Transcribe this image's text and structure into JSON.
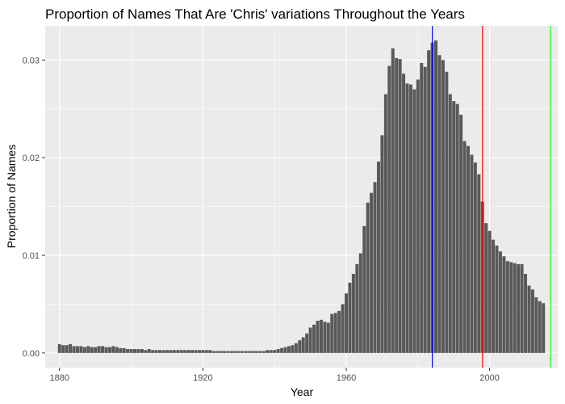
{
  "chart_data": {
    "type": "bar",
    "title": "Proportion of Names That Are 'Chris' variations Throughout the Years",
    "xlabel": "Year",
    "ylabel": "Proportion of Names",
    "xlim": [
      1876,
      2019
    ],
    "ylim": [
      -0.0015,
      0.0335
    ],
    "xticks": [
      1880,
      1920,
      1960,
      2000
    ],
    "yticks": [
      0.0,
      0.01,
      0.02,
      0.03
    ],
    "ytick_labels": [
      "0.00",
      "0.01",
      "0.02",
      "0.03"
    ],
    "grid": true,
    "colors": {
      "panel": "#ebebeb",
      "grid": "#ffffff",
      "bar": "#595959",
      "tick": "#333333"
    },
    "reference_lines": [
      {
        "x": 1984,
        "color": "#0000ff"
      },
      {
        "x": 1998,
        "color": "#ff0000"
      },
      {
        "x": 2017,
        "color": "#00ff00"
      }
    ],
    "x": [
      1880,
      1881,
      1882,
      1883,
      1884,
      1885,
      1886,
      1887,
      1888,
      1889,
      1890,
      1891,
      1892,
      1893,
      1894,
      1895,
      1896,
      1897,
      1898,
      1899,
      1900,
      1901,
      1902,
      1903,
      1904,
      1905,
      1906,
      1907,
      1908,
      1909,
      1910,
      1911,
      1912,
      1913,
      1914,
      1915,
      1916,
      1917,
      1918,
      1919,
      1920,
      1921,
      1922,
      1923,
      1924,
      1925,
      1926,
      1927,
      1928,
      1929,
      1930,
      1931,
      1932,
      1933,
      1934,
      1935,
      1936,
      1937,
      1938,
      1939,
      1940,
      1941,
      1942,
      1943,
      1944,
      1945,
      1946,
      1947,
      1948,
      1949,
      1950,
      1951,
      1952,
      1953,
      1954,
      1955,
      1956,
      1957,
      1958,
      1959,
      1960,
      1961,
      1962,
      1963,
      1964,
      1965,
      1966,
      1967,
      1968,
      1969,
      1970,
      1971,
      1972,
      1973,
      1974,
      1975,
      1976,
      1977,
      1978,
      1979,
      1980,
      1981,
      1982,
      1983,
      1984,
      1985,
      1986,
      1987,
      1988,
      1989,
      1990,
      1991,
      1992,
      1993,
      1994,
      1995,
      1996,
      1997,
      1998,
      1999,
      2000,
      2001,
      2002,
      2003,
      2004,
      2005,
      2006,
      2007,
      2008,
      2009,
      2010,
      2011,
      2012,
      2013,
      2014,
      2015
    ],
    "values": [
      0.0009,
      0.0008,
      0.0008,
      0.0009,
      0.0007,
      0.0007,
      0.0007,
      0.0006,
      0.0007,
      0.0006,
      0.0006,
      0.0007,
      0.0007,
      0.0006,
      0.0006,
      0.0007,
      0.0006,
      0.0005,
      0.0005,
      0.0004,
      0.0004,
      0.0004,
      0.0004,
      0.0004,
      0.0003,
      0.0004,
      0.0003,
      0.0003,
      0.0003,
      0.0003,
      0.0003,
      0.0003,
      0.0003,
      0.0003,
      0.0003,
      0.0003,
      0.0003,
      0.0003,
      0.0003,
      0.0003,
      0.0003,
      0.0003,
      0.0003,
      0.0002,
      0.0002,
      0.0002,
      0.0002,
      0.0002,
      0.0002,
      0.0002,
      0.0002,
      0.0002,
      0.0002,
      0.0002,
      0.0002,
      0.0002,
      0.0002,
      0.0002,
      0.0003,
      0.0003,
      0.0003,
      0.0004,
      0.0005,
      0.0006,
      0.0007,
      0.0008,
      0.001,
      0.0013,
      0.0016,
      0.002,
      0.0026,
      0.0029,
      0.0033,
      0.0034,
      0.0032,
      0.0031,
      0.004,
      0.0041,
      0.0043,
      0.005,
      0.0061,
      0.0072,
      0.0081,
      0.0091,
      0.0102,
      0.013,
      0.0154,
      0.0164,
      0.0175,
      0.0196,
      0.0223,
      0.0265,
      0.0294,
      0.0312,
      0.0302,
      0.0301,
      0.0286,
      0.0276,
      0.0275,
      0.027,
      0.028,
      0.0297,
      0.0293,
      0.031,
      0.0318,
      0.032,
      0.0305,
      0.03,
      0.0288,
      0.0265,
      0.0258,
      0.0255,
      0.0244,
      0.0217,
      0.0212,
      0.0203,
      0.0195,
      0.0183,
      0.0155,
      0.0133,
      0.0125,
      0.0116,
      0.011,
      0.0104,
      0.0099,
      0.0094,
      0.0093,
      0.0092,
      0.0091,
      0.0091,
      0.0081,
      0.0069,
      0.0065,
      0.0057,
      0.0053,
      0.0051
    ]
  }
}
